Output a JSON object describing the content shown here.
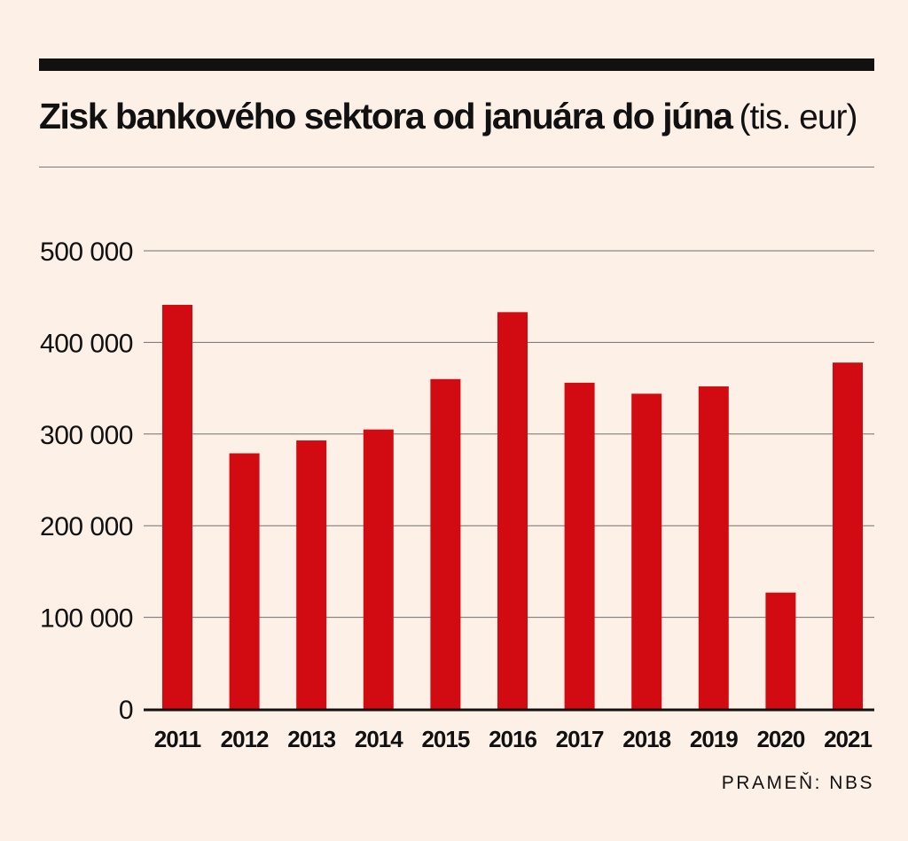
{
  "chart_data": {
    "type": "bar",
    "title": "Zisk bankového sektora od januára do júna",
    "title_unit": "(tis. eur)",
    "categories": [
      "2011",
      "2012",
      "2013",
      "2014",
      "2015",
      "2016",
      "2017",
      "2018",
      "2019",
      "2020",
      "2021"
    ],
    "series": [
      {
        "values": [
          441000,
          279000,
          293000,
          305000,
          360000,
          433000,
          356000,
          344000,
          352000,
          127000,
          378000
        ],
        "color": "#d20a11"
      }
    ],
    "y_ticks": [
      0,
      100000,
      200000,
      300000,
      400000,
      500000
    ],
    "y_tick_labels": [
      "0",
      "100 000",
      "200 000",
      "300 000",
      "400 000",
      "500 000"
    ],
    "ylim": [
      0,
      500000
    ],
    "grid": true,
    "legend": "none",
    "source": "PRAMEŇ: NBS"
  }
}
